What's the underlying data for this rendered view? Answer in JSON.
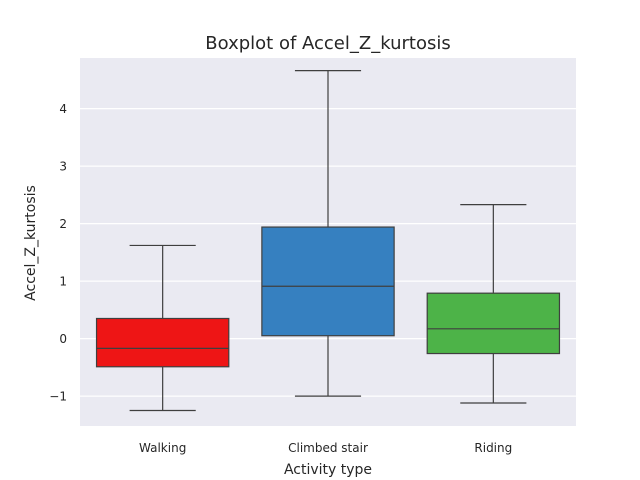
{
  "chart_data": {
    "type": "boxplot",
    "title": "Boxplot of Accel_Z_kurtosis",
    "xlabel": "Activity type",
    "ylabel": "Accel_Z_kurtosis",
    "ylim": [
      -1.52,
      4.88
    ],
    "yticks": [
      -1,
      0,
      1,
      2,
      3,
      4
    ],
    "ytick_labels": [
      "−1",
      "0",
      "1",
      "2",
      "3",
      "4"
    ],
    "grid": true,
    "background_color": "#eaeaf2",
    "categories": [
      "Walking",
      "Climbed stair",
      "Riding"
    ],
    "colors": [
      "#ee1515",
      "#3680c0",
      "#4db348"
    ],
    "boxes": [
      {
        "category": "Walking",
        "whisker_low": -1.25,
        "q1": -0.49,
        "median": -0.17,
        "q3": 0.35,
        "whisker_high": 1.62
      },
      {
        "category": "Climbed stair",
        "whisker_low": -1.0,
        "q1": 0.05,
        "median": 0.91,
        "q3": 1.94,
        "whisker_high": 4.66
      },
      {
        "category": "Riding",
        "whisker_low": -1.12,
        "q1": -0.26,
        "median": 0.17,
        "q3": 0.79,
        "whisker_high": 2.33
      }
    ]
  }
}
